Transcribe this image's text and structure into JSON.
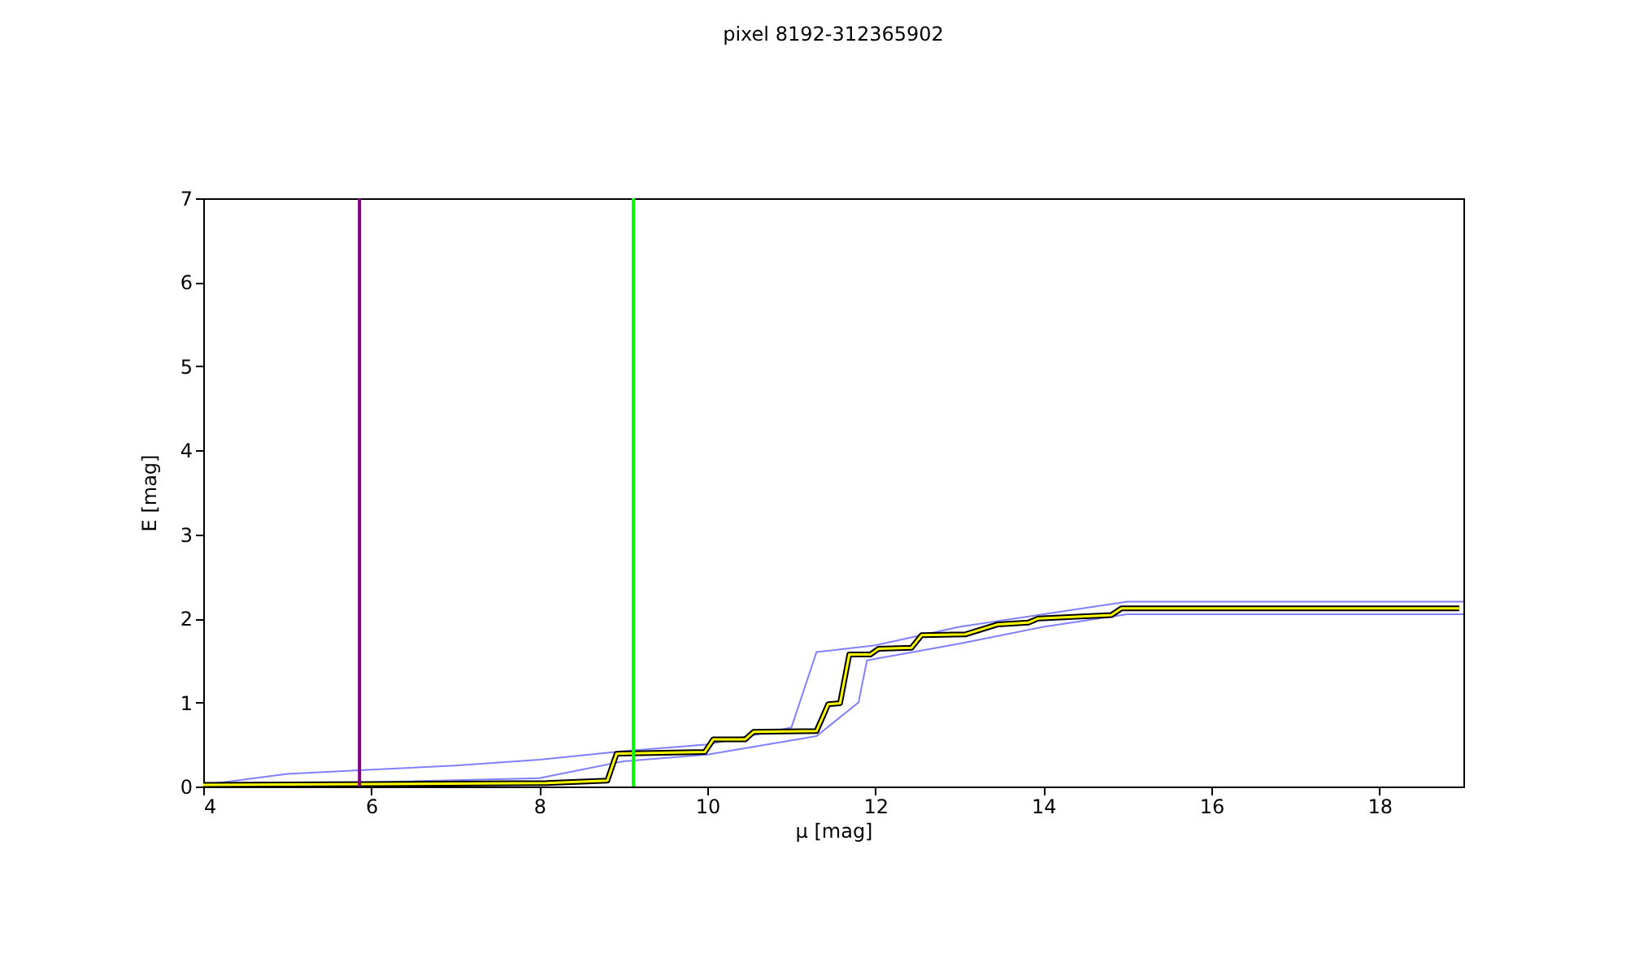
{
  "chart_data": {
    "type": "line",
    "title": "pixel 8192-312365902",
    "xlabel": "μ [mag]",
    "ylabel": "E [mag]",
    "xlim": [
      4,
      19
    ],
    "ylim": [
      0,
      7
    ],
    "xticks": [
      4,
      6,
      8,
      10,
      12,
      14,
      16,
      18
    ],
    "yticks": [
      0,
      1,
      2,
      3,
      4,
      5,
      6,
      7
    ],
    "grid": false,
    "marker": "none",
    "line_style": "solid",
    "series": [
      {
        "color": "#0000ff",
        "x": [
          4,
          5,
          6,
          7,
          8,
          9,
          10,
          11,
          11.3,
          12,
          13,
          14,
          15,
          19
        ],
        "values": [
          0.02,
          0.15,
          0.2,
          0.25,
          0.32,
          0.42,
          0.5,
          0.7,
          1.6,
          1.68,
          1.9,
          2.05,
          2.2,
          2.2
        ]
      },
      {
        "color": "#0000ff",
        "x": [
          4,
          8,
          9,
          10,
          11.3,
          11.8,
          11.9,
          13,
          14,
          15,
          19
        ],
        "values": [
          0,
          0.1,
          0.3,
          0.38,
          0.6,
          1.0,
          1.5,
          1.7,
          1.9,
          2.05,
          2.05
        ]
      },
      {
        "color": "#ffff00",
        "x": [
          4,
          8.09,
          8.81,
          8.92,
          9.97,
          10.07,
          10.45,
          10.55,
          11.3,
          11.44,
          11.58,
          11.69,
          11.94,
          12.04,
          12.43,
          12.55,
          13.07,
          13.46,
          13.82,
          13.94,
          14.81,
          14.93,
          18.95
        ],
        "values": [
          0.02,
          0.04,
          0.07,
          0.39,
          0.41,
          0.56,
          0.56,
          0.65,
          0.66,
          0.98,
          0.99,
          1.57,
          1.57,
          1.64,
          1.65,
          1.8,
          1.81,
          1.93,
          1.95,
          2.0,
          2.04,
          2.12,
          2.12
        ]
      }
    ],
    "ref_lines": [
      {
        "axis": "x",
        "value": 5.86,
        "color": "#800080"
      },
      {
        "axis": "x",
        "value": 9.12,
        "color": "#00ff00"
      }
    ]
  }
}
